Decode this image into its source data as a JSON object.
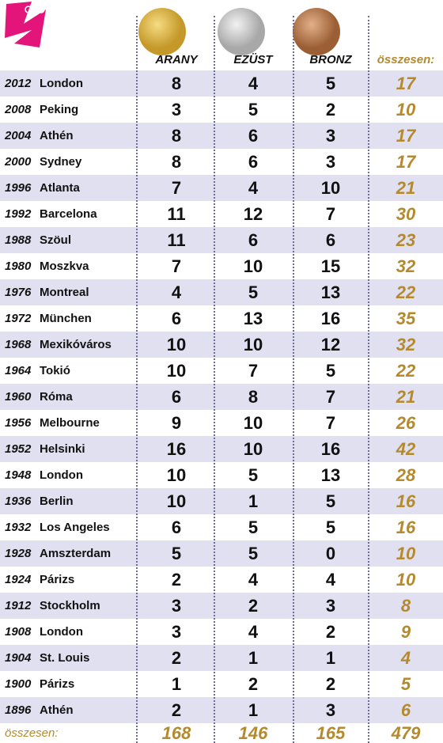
{
  "table": {
    "header": [
      "ARANY",
      "EZÜST",
      "BRONZ",
      "összesen:"
    ],
    "rows": [
      [
        "2012",
        "London",
        8,
        4,
        5,
        17
      ],
      [
        "2008",
        "Peking",
        3,
        5,
        2,
        10
      ],
      [
        "2004",
        "Athén",
        8,
        6,
        3,
        17
      ],
      [
        "2000",
        "Sydney",
        8,
        6,
        3,
        17
      ],
      [
        "1996",
        "Atlanta",
        7,
        4,
        10,
        21
      ],
      [
        "1992",
        "Barcelona",
        11,
        12,
        7,
        30
      ],
      [
        "1988",
        "Szöul",
        11,
        6,
        6,
        23
      ],
      [
        "1980",
        "Moszkva",
        7,
        10,
        15,
        32
      ],
      [
        "1976",
        "Montreal",
        4,
        5,
        13,
        22
      ],
      [
        "1972",
        "München",
        6,
        13,
        16,
        35
      ],
      [
        "1968",
        "Mexikóváros",
        10,
        10,
        12,
        32
      ],
      [
        "1964",
        "Tokió",
        10,
        7,
        5,
        22
      ],
      [
        "1960",
        "Róma",
        6,
        8,
        7,
        21
      ],
      [
        "1956",
        "Melbourne",
        9,
        10,
        7,
        26
      ],
      [
        "1952",
        "Helsinki",
        16,
        10,
        16,
        42
      ],
      [
        "1948",
        "London",
        10,
        5,
        13,
        28
      ],
      [
        "1936",
        "Berlin",
        10,
        1,
        5,
        16
      ],
      [
        "1932",
        "Los Angeles",
        6,
        5,
        5,
        16
      ],
      [
        "1928",
        "Amszterdam",
        5,
        5,
        0,
        10
      ],
      [
        "1924",
        "Párizs",
        2,
        4,
        4,
        10
      ],
      [
        "1912",
        "Stockholm",
        3,
        2,
        3,
        8
      ],
      [
        "1908",
        "London",
        3,
        4,
        2,
        9
      ],
      [
        "1904",
        "St. Louis",
        2,
        1,
        1,
        4
      ],
      [
        "1900",
        "Párizs",
        1,
        2,
        2,
        5
      ],
      [
        "1896",
        "Athén",
        2,
        1,
        3,
        6
      ]
    ],
    "footer": [
      "összesen:",
      168,
      146,
      165,
      479
    ]
  }
}
